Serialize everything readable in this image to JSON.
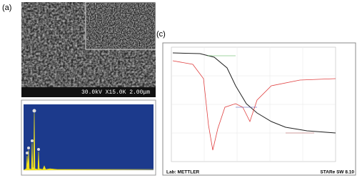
{
  "panels": {
    "a": {
      "label": "(a)",
      "sem_caption": "30.0kV X15.0K 2.00μm"
    },
    "c": {
      "label": "(c)",
      "footer_left": "Lab: METTLER",
      "footer_right": "STARe SW 8.10"
    }
  }
}
